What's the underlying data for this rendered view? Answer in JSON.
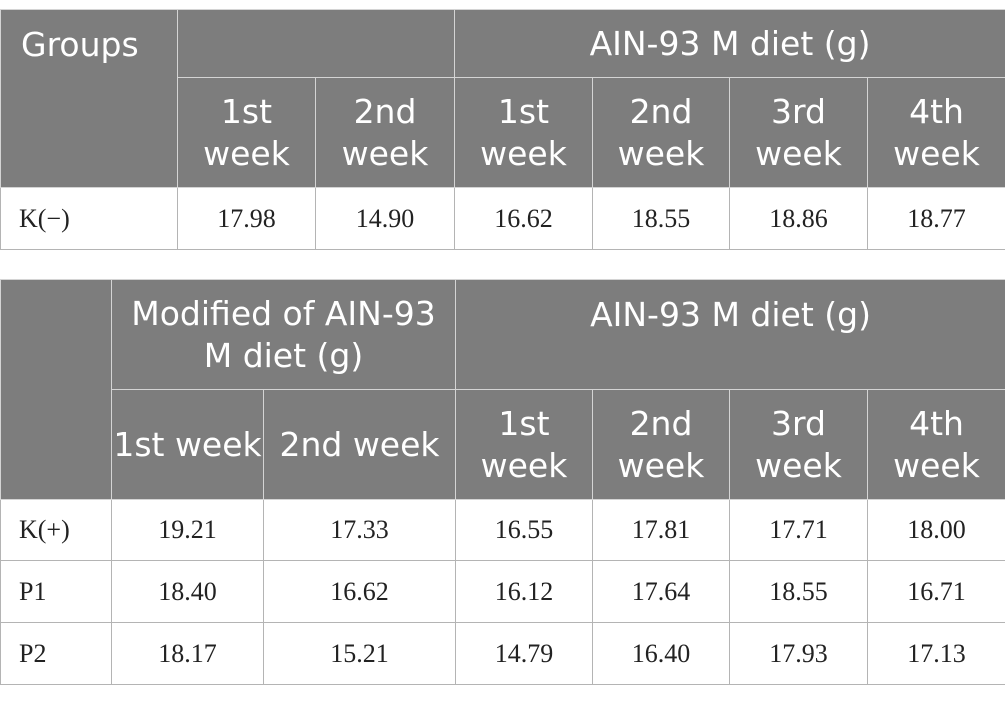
{
  "table1": {
    "groups_label": "Groups",
    "mid_header": "",
    "right_header": "AIN-93 M diet (g)",
    "weeks": [
      "1st week",
      "2nd week",
      "1st week",
      "2nd week",
      "3rd week",
      "4th week"
    ],
    "rows": [
      {
        "group": "K(−)",
        "values": [
          "17.98",
          "14.90",
          "16.62",
          "18.55",
          "18.86",
          "18.77"
        ]
      }
    ]
  },
  "table2": {
    "groups_label": "",
    "mid_header": "Modified of AIN-93 M diet (g)",
    "right_header": "AIN-93 M diet (g)",
    "weeks": [
      "1st week",
      "2nd week",
      "1st week",
      "2nd week",
      "3rd week",
      "4th week"
    ],
    "rows": [
      {
        "group": "K(+)",
        "values": [
          "19.21",
          "17.33",
          "16.55",
          "17.81",
          "17.71",
          "18.00"
        ]
      },
      {
        "group": "P1",
        "values": [
          "18.40",
          "16.62",
          "16.12",
          "17.64",
          "18.55",
          "16.71"
        ]
      },
      {
        "group": "P2",
        "values": [
          "18.17",
          "15.21",
          "14.79",
          "16.40",
          "17.93",
          "17.13"
        ]
      }
    ]
  }
}
